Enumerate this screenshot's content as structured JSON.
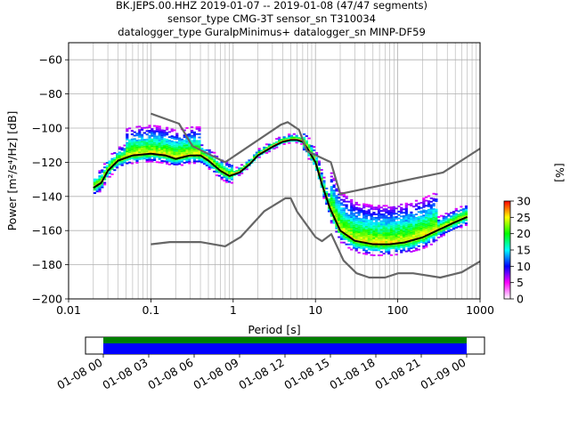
{
  "title_lines": [
    "BK.JEPS.00.HHZ   2019-01-07 -- 2019-01-08  (47/47 segments)",
    "sensor_type CMG-3T sensor_sn T310034",
    "datalogger_type GuralpMinimus+ datalogger_sn MINP-DF59"
  ],
  "chart_data": [
    {
      "type": "heatmap",
      "xlabel": "Period [s]",
      "ylabel": "Power [m²/s⁴/Hz] [dB]",
      "xscale": "log",
      "xlim": [
        0.01,
        1000
      ],
      "ylim": [
        -200,
        -50
      ],
      "xticks": [
        0.01,
        0.1,
        1,
        10,
        100,
        1000
      ],
      "xtick_labels": [
        "0.01",
        "0.1",
        "1",
        "10",
        "100",
        "1000"
      ],
      "yticks": [
        -200,
        -180,
        -160,
        -140,
        -120,
        -100,
        -80,
        -60
      ],
      "ytick_labels": [
        "−200",
        "−180",
        "−160",
        "−140",
        "−120",
        "−100",
        "−80",
        "−60"
      ],
      "grid": true,
      "colorbar": {
        "label": "[%]",
        "range": [
          0,
          30
        ],
        "ticks": [
          0,
          5,
          10,
          15,
          20,
          25,
          30
        ],
        "tick_labels": [
          "0",
          "5",
          "10",
          "15",
          "20",
          "25",
          "30"
        ],
        "colormap": [
          "#ffffff",
          "#ff00ff",
          "#0000ff",
          "#00ffff",
          "#00ff00",
          "#ffff00",
          "#ff0000"
        ]
      },
      "series": [
        {
          "role": "mode",
          "color": "#000000",
          "x": [
            0.02,
            0.025,
            0.03,
            0.04,
            0.06,
            0.1,
            0.15,
            0.2,
            0.3,
            0.4,
            0.5,
            0.7,
            0.9,
            1.2,
            1.6,
            2.0,
            3.0,
            4.0,
            5.0,
            6.0,
            7.0,
            8.0,
            10,
            12,
            15,
            20,
            30,
            50,
            80,
            120,
            200,
            300,
            500,
            700
          ],
          "y": [
            -135,
            -132,
            -125,
            -119,
            -116,
            -115,
            -116,
            -118,
            -116,
            -116,
            -119,
            -125,
            -128,
            -126,
            -121,
            -116,
            -111,
            -108,
            -107,
            -107,
            -108,
            -112,
            -120,
            -133,
            -147,
            -160,
            -166,
            -168,
            -168,
            -167,
            -164,
            -160,
            -155,
            -152
          ]
        },
        {
          "role": "noise_model_high",
          "color": "#666666",
          "x": [
            0.1,
            0.22,
            0.32,
            0.8,
            3.8,
            4.6,
            6.3,
            7.9,
            15.4,
            20,
            354.8,
            1000
          ],
          "y": [
            -91.5,
            -97.4,
            -110.5,
            -120,
            -98,
            -96.5,
            -101,
            -113.5,
            -120,
            -138.5,
            -126,
            -112
          ]
        },
        {
          "role": "noise_model_low",
          "color": "#666666",
          "x": [
            0.1,
            0.17,
            0.4,
            0.8,
            1.24,
            2.4,
            4.3,
            5.0,
            6.0,
            10.0,
            12.0,
            15.6,
            21.9,
            31.6,
            45.0,
            70.0,
            101.0,
            154.0,
            328.0,
            600.0,
            1000
          ],
          "y": [
            -168,
            -166.7,
            -166.7,
            -169.2,
            -163.7,
            -148.6,
            -141.1,
            -141.1,
            -149,
            -163.8,
            -166.2,
            -162.1,
            -177.5,
            -185,
            -187.5,
            -187.5,
            -185,
            -185,
            -187.5,
            -184.4,
            -178
          ]
        }
      ]
    },
    {
      "type": "coverage",
      "x_tick_labels": [
        "01-08 00",
        "01-08 03",
        "01-08 06",
        "01-08 09",
        "01-08 12",
        "01-08 15",
        "01-08 18",
        "01-08 21",
        "01-09 00"
      ],
      "bands": [
        {
          "color": "#008000",
          "covered": true
        },
        {
          "color": "#0000ff",
          "covered": true
        }
      ]
    }
  ]
}
